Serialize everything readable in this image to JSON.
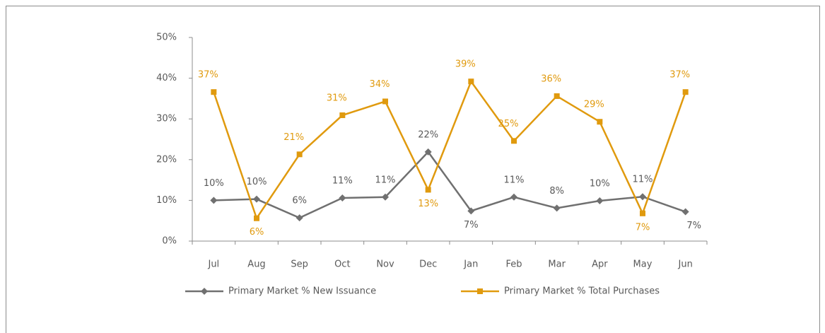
{
  "chart_data": {
    "type": "line",
    "categories": [
      "Jul",
      "Aug",
      "Sep",
      "Oct",
      "Nov",
      "Dec",
      "Jan",
      "Feb",
      "Mar",
      "Apr",
      "May",
      "Jun"
    ],
    "series": [
      {
        "name": "Primary Market % New Issuance",
        "color": "#707070",
        "marker": "diamond",
        "values": [
          10.0,
          10.3,
          5.7,
          10.6,
          10.8,
          21.9,
          7.4,
          10.8,
          8.1,
          9.9,
          10.9,
          7.2
        ],
        "value_labels": [
          "10%",
          "10%",
          "6%",
          "11%",
          "11%",
          "22%",
          "7%",
          "11%",
          "8%",
          "10%",
          "11%",
          "7%"
        ]
      },
      {
        "name": "Primary Market % Total Purchases",
        "color": "#e09a0e",
        "marker": "square",
        "values": [
          36.6,
          5.6,
          21.3,
          30.9,
          34.3,
          12.6,
          39.2,
          24.6,
          35.6,
          29.3,
          6.8,
          36.6
        ],
        "value_labels": [
          "37%",
          "6%",
          "21%",
          "31%",
          "34%",
          "13%",
          "39%",
          "25%",
          "36%",
          "29%",
          "7%",
          "37%"
        ]
      }
    ],
    "ylim": [
      0,
      50
    ],
    "yticks": [
      {
        "value": 0,
        "label": "0%"
      },
      {
        "value": 10,
        "label": "10%"
      },
      {
        "value": 20,
        "label": "20%"
      },
      {
        "value": 30,
        "label": "30%"
      },
      {
        "value": 40,
        "label": "40%"
      },
      {
        "value": 50,
        "label": "50%"
      }
    ],
    "grid": false,
    "legend": "bottom"
  }
}
